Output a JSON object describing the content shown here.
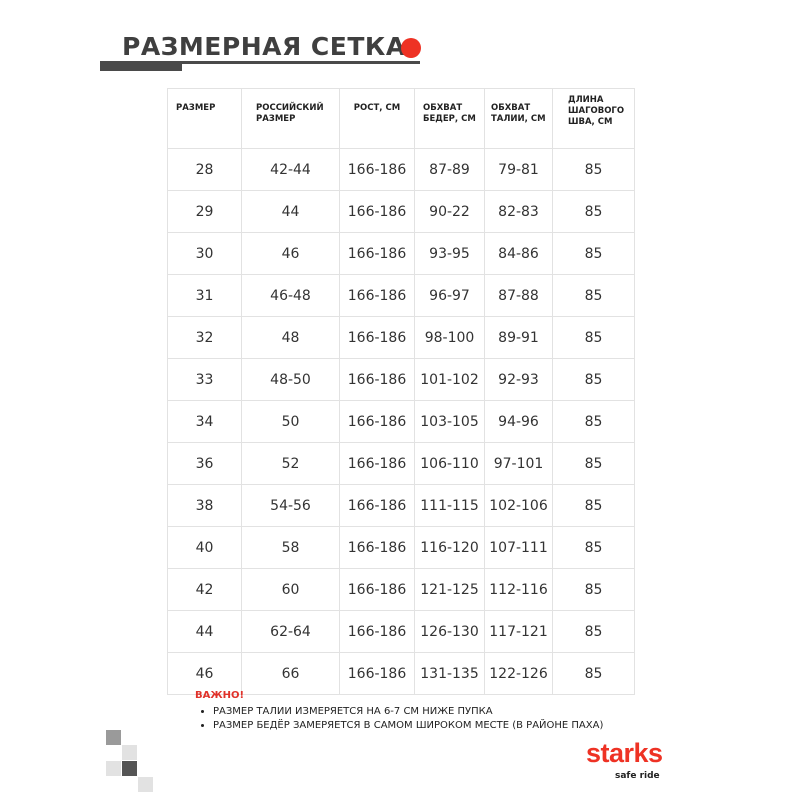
{
  "title": "РАЗМЕРНАЯ СЕТКА",
  "colors": {
    "accent": "#ee3224",
    "dark": "#4a4a4a"
  },
  "table": {
    "headers": [
      "РАЗМЕР",
      "РОССИЙСКИЙ РАЗМЕР",
      "РОСТ, СМ",
      "ОБХВАТ БЕДЕР, СМ",
      "ОБХВАТ ТАЛИИ, СМ",
      "ДЛИНА ШАГОВОГО ШВА, СМ"
    ],
    "rows": [
      [
        "28",
        "42-44",
        "166-186",
        "87-89",
        "79-81",
        "85"
      ],
      [
        "29",
        "44",
        "166-186",
        "90-22",
        "82-83",
        "85"
      ],
      [
        "30",
        "46",
        "166-186",
        "93-95",
        "84-86",
        "85"
      ],
      [
        "31",
        "46-48",
        "166-186",
        "96-97",
        "87-88",
        "85"
      ],
      [
        "32",
        "48",
        "166-186",
        "98-100",
        "89-91",
        "85"
      ],
      [
        "33",
        "48-50",
        "166-186",
        "101-102",
        "92-93",
        "85"
      ],
      [
        "34",
        "50",
        "166-186",
        "103-105",
        "94-96",
        "85"
      ],
      [
        "36",
        "52",
        "166-186",
        "106-110",
        "97-101",
        "85"
      ],
      [
        "38",
        "54-56",
        "166-186",
        "111-115",
        "102-106",
        "85"
      ],
      [
        "40",
        "58",
        "166-186",
        "116-120",
        "107-111",
        "85"
      ],
      [
        "42",
        "60",
        "166-186",
        "121-125",
        "112-116",
        "85"
      ],
      [
        "44",
        "62-64",
        "166-186",
        "126-130",
        "117-121",
        "85"
      ],
      [
        "46",
        "66",
        "166-186",
        "131-135",
        "122-126",
        "85"
      ]
    ]
  },
  "note": {
    "warning": "ВАЖНО!",
    "items": [
      "РАЗМЕР ТАЛИИ ИЗМЕРЯЕТСЯ НА 6-7 СМ НИЖЕ ПУПКА",
      "РАЗМЕР БЕДЁР ЗАМЕРЯЕТСЯ В САМОМ ШИРОКОМ МЕСТЕ (В РАЙОНЕ ПАХА)"
    ]
  },
  "logo": {
    "brand": "starks",
    "tagline": "safe ride"
  }
}
